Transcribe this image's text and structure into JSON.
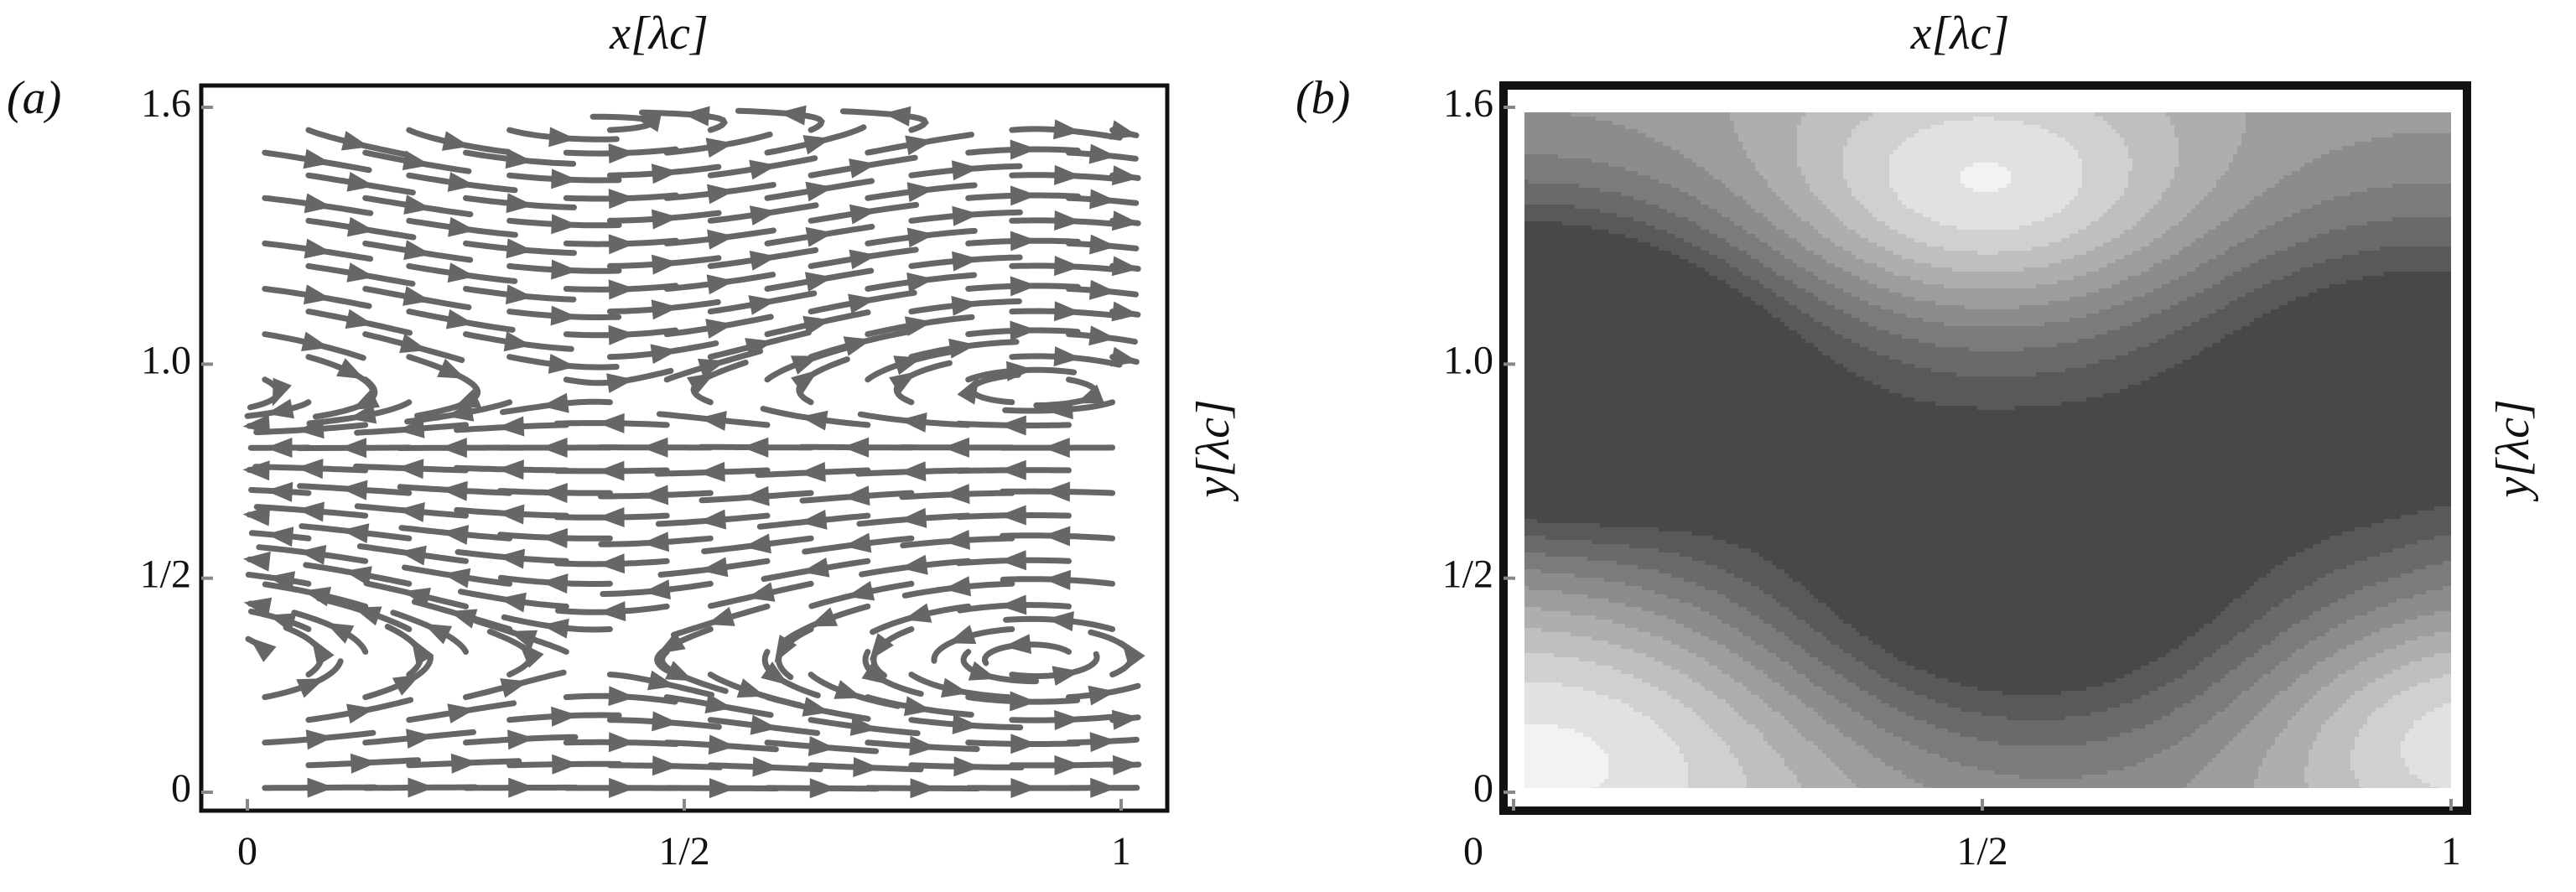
{
  "chart_data": [
    {
      "type": "streamplot",
      "panel_label": "(a)",
      "xlabel": "x[λc]",
      "ylabel": "y[λc]",
      "xlim": [
        0,
        1
      ],
      "ylim": [
        0,
        1.6
      ],
      "xticks": [
        0,
        {
          "value": 0.5,
          "label": "1/2"
        },
        1
      ],
      "yticks": [
        0,
        {
          "value": 0.5,
          "label": "1/2"
        },
        {
          "value": 1,
          "label": "1.0"
        },
        1.6
      ]
    },
    {
      "type": "contour",
      "panel_label": "(b)",
      "xlabel": "x[λc]",
      "ylabel": "y[λc]",
      "xlim": [
        0,
        1
      ],
      "ylim": [
        0,
        1.6
      ],
      "xticks": [
        0,
        {
          "value": 0.5,
          "label": "1/2"
        },
        1
      ],
      "yticks": [
        0,
        {
          "value": 0.5,
          "label": "1/2"
        },
        {
          "value": 1,
          "label": "1.0"
        },
        1.6
      ]
    }
  ]
}
